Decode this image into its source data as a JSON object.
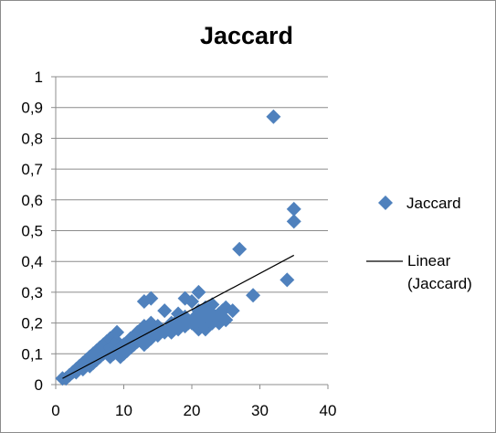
{
  "chart_data": {
    "type": "scatter",
    "title": "Jaccard",
    "xlabel": "",
    "ylabel": "",
    "xlim": [
      0,
      40
    ],
    "ylim": [
      0,
      1
    ],
    "xticks": [
      "0",
      "10",
      "20",
      "30",
      "40"
    ],
    "yticks": [
      "0",
      "0,1",
      "0,2",
      "0,3",
      "0,4",
      "0,5",
      "0,6",
      "0,7",
      "0,8",
      "0,9",
      "1"
    ],
    "grid": "horizontal",
    "legend_position": "right",
    "legend": [
      {
        "label": "Jaccard",
        "marker": "diamond",
        "color": "#4f81bd"
      },
      {
        "label_line1": "Linear",
        "label_line2": "(Jaccard)",
        "marker": "line",
        "color": "#000000"
      }
    ],
    "series": [
      {
        "name": "Jaccard",
        "color": "#4f81bd",
        "points": [
          [
            1,
            0.02
          ],
          [
            1.5,
            0.02
          ],
          [
            2,
            0.03
          ],
          [
            2.5,
            0.04
          ],
          [
            3,
            0.05
          ],
          [
            3,
            0.04
          ],
          [
            3.5,
            0.06
          ],
          [
            4,
            0.05
          ],
          [
            4,
            0.07
          ],
          [
            4.5,
            0.08
          ],
          [
            5,
            0.06
          ],
          [
            5,
            0.09
          ],
          [
            5.5,
            0.07
          ],
          [
            5.5,
            0.1
          ],
          [
            6,
            0.08
          ],
          [
            6,
            0.11
          ],
          [
            6.5,
            0.09
          ],
          [
            6.5,
            0.12
          ],
          [
            7,
            0.1
          ],
          [
            7,
            0.13
          ],
          [
            7.5,
            0.11
          ],
          [
            7.5,
            0.14
          ],
          [
            8,
            0.09
          ],
          [
            8,
            0.12
          ],
          [
            8,
            0.15
          ],
          [
            8.5,
            0.1
          ],
          [
            8.5,
            0.13
          ],
          [
            9,
            0.11
          ],
          [
            9,
            0.14
          ],
          [
            9,
            0.17
          ],
          [
            9.5,
            0.09
          ],
          [
            9.5,
            0.12
          ],
          [
            10,
            0.1
          ],
          [
            10,
            0.13
          ],
          [
            10.5,
            0.11
          ],
          [
            11,
            0.12
          ],
          [
            11,
            0.15
          ],
          [
            11.5,
            0.13
          ],
          [
            12,
            0.14
          ],
          [
            12,
            0.17
          ],
          [
            12.5,
            0.15
          ],
          [
            13,
            0.13
          ],
          [
            13,
            0.16
          ],
          [
            13,
            0.19
          ],
          [
            13,
            0.27
          ],
          [
            13.5,
            0.14
          ],
          [
            13.5,
            0.18
          ],
          [
            14,
            0.15
          ],
          [
            14,
            0.2
          ],
          [
            14,
            0.28
          ],
          [
            14.5,
            0.17
          ],
          [
            15,
            0.16
          ],
          [
            15,
            0.19
          ],
          [
            15.5,
            0.18
          ],
          [
            16,
            0.17
          ],
          [
            16,
            0.24
          ],
          [
            16.5,
            0.18
          ],
          [
            17,
            0.17
          ],
          [
            17,
            0.2
          ],
          [
            17.5,
            0.19
          ],
          [
            18,
            0.18
          ],
          [
            18,
            0.21
          ],
          [
            18,
            0.23
          ],
          [
            18.5,
            0.2
          ],
          [
            19,
            0.19
          ],
          [
            19,
            0.22
          ],
          [
            19,
            0.28
          ],
          [
            19.5,
            0.2
          ],
          [
            20,
            0.2
          ],
          [
            20,
            0.27
          ],
          [
            20.5,
            0.22
          ],
          [
            21,
            0.18
          ],
          [
            21,
            0.21
          ],
          [
            21,
            0.24
          ],
          [
            21,
            0.3
          ],
          [
            21.5,
            0.22
          ],
          [
            22,
            0.18
          ],
          [
            22,
            0.2
          ],
          [
            22,
            0.25
          ],
          [
            22.5,
            0.21
          ],
          [
            23,
            0.2
          ],
          [
            23,
            0.23
          ],
          [
            23,
            0.26
          ],
          [
            23.5,
            0.22
          ],
          [
            24,
            0.2
          ],
          [
            24,
            0.23
          ],
          [
            24.5,
            0.24
          ],
          [
            25,
            0.21
          ],
          [
            25,
            0.25
          ],
          [
            26,
            0.24
          ],
          [
            27,
            0.44
          ],
          [
            29,
            0.29
          ],
          [
            32,
            0.87
          ],
          [
            34,
            0.34
          ],
          [
            35,
            0.57
          ],
          [
            35,
            0.53
          ]
        ]
      },
      {
        "name": "Linear (Jaccard)",
        "type": "line",
        "color": "#000000",
        "points": [
          [
            1,
            0.02
          ],
          [
            35,
            0.42
          ]
        ]
      }
    ]
  }
}
